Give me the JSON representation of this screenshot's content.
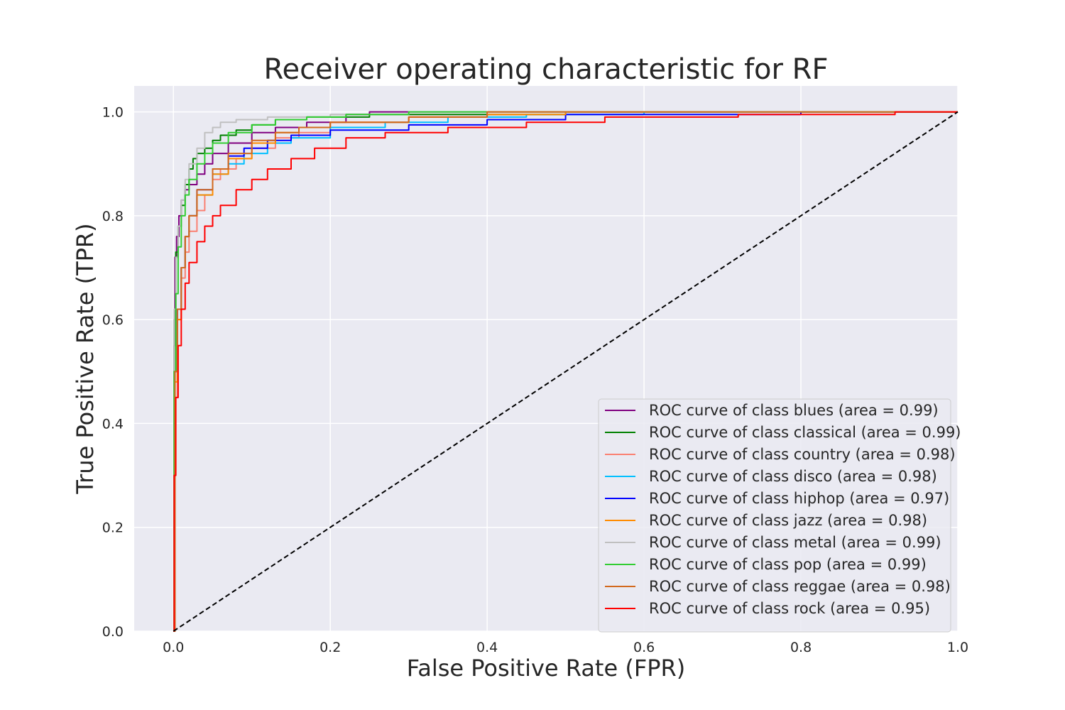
{
  "chart_data": {
    "type": "line",
    "title": "Receiver operating characteristic for RF",
    "xlabel": "False Positive Rate (FPR)",
    "ylabel": "True Positive Rate (TPR)",
    "xlim": [
      -0.05,
      1.0
    ],
    "ylim": [
      0.0,
      1.05
    ],
    "xticks": [
      "0.0",
      "0.2",
      "0.4",
      "0.6",
      "0.8",
      "1.0"
    ],
    "yticks": [
      "0.0",
      "0.2",
      "0.4",
      "0.6",
      "0.8",
      "1.0"
    ],
    "grid": true,
    "legend_position": "lower-right",
    "background_color": "#eaeaf2",
    "reference_line": {
      "x": [
        0,
        1
      ],
      "y": [
        0,
        1
      ],
      "color": "#000000",
      "style": "dashed"
    },
    "series": [
      {
        "name": "ROC curve of class blues (area = 0.99)",
        "color": "#800080",
        "x": [
          0,
          0.001,
          0.002,
          0.004,
          0.007,
          0.01,
          0.015,
          0.02,
          0.03,
          0.04,
          0.05,
          0.07,
          0.1,
          0.13,
          0.17,
          0.22,
          0.25,
          0.35,
          1.0
        ],
        "y": [
          0,
          0.55,
          0.72,
          0.76,
          0.8,
          0.83,
          0.85,
          0.86,
          0.88,
          0.9,
          0.92,
          0.94,
          0.96,
          0.97,
          0.98,
          0.995,
          1.0,
          1.0,
          1.0
        ]
      },
      {
        "name": "ROC curve of class classical (area = 0.99)",
        "color": "#008000",
        "x": [
          0,
          0.001,
          0.003,
          0.006,
          0.01,
          0.015,
          0.02,
          0.025,
          0.03,
          0.04,
          0.05,
          0.06,
          0.08,
          0.1,
          0.13,
          0.17,
          0.25,
          0.5,
          1.0
        ],
        "y": [
          0,
          0.6,
          0.73,
          0.78,
          0.82,
          0.86,
          0.89,
          0.91,
          0.92,
          0.93,
          0.945,
          0.955,
          0.965,
          0.975,
          0.985,
          0.99,
          0.995,
          1.0,
          1.0
        ]
      },
      {
        "name": "ROC curve of class country (area = 0.98)",
        "color": "#fa8072",
        "x": [
          0,
          0.002,
          0.005,
          0.01,
          0.015,
          0.02,
          0.03,
          0.04,
          0.05,
          0.06,
          0.08,
          0.1,
          0.13,
          0.16,
          0.2,
          0.3,
          0.4,
          0.5,
          1.0
        ],
        "y": [
          0,
          0.45,
          0.6,
          0.68,
          0.73,
          0.77,
          0.81,
          0.84,
          0.87,
          0.89,
          0.91,
          0.93,
          0.95,
          0.96,
          0.98,
          0.99,
          0.995,
          1.0,
          1.0
        ]
      },
      {
        "name": "ROC curve of class disco (area = 0.98)",
        "color": "#00bfff",
        "x": [
          0,
          0.002,
          0.005,
          0.01,
          0.015,
          0.02,
          0.03,
          0.05,
          0.07,
          0.09,
          0.12,
          0.15,
          0.2,
          0.27,
          0.35,
          0.45,
          0.6,
          1.0
        ],
        "y": [
          0,
          0.5,
          0.62,
          0.7,
          0.76,
          0.8,
          0.84,
          0.88,
          0.9,
          0.92,
          0.94,
          0.95,
          0.97,
          0.98,
          0.99,
          0.995,
          1.0,
          1.0
        ]
      },
      {
        "name": "ROC curve of class hiphop (area = 0.97)",
        "color": "#0000ff",
        "x": [
          0,
          0.002,
          0.005,
          0.01,
          0.015,
          0.02,
          0.03,
          0.05,
          0.07,
          0.09,
          0.12,
          0.15,
          0.2,
          0.3,
          0.4,
          0.5,
          0.7,
          0.8,
          1.0
        ],
        "y": [
          0,
          0.5,
          0.62,
          0.7,
          0.76,
          0.8,
          0.85,
          0.89,
          0.915,
          0.93,
          0.945,
          0.955,
          0.965,
          0.975,
          0.985,
          0.995,
          0.995,
          1.0,
          1.0
        ]
      },
      {
        "name": "ROC curve of class jazz (area = 0.98)",
        "color": "#ff8c00",
        "x": [
          0,
          0.002,
          0.005,
          0.01,
          0.015,
          0.02,
          0.03,
          0.05,
          0.07,
          0.1,
          0.13,
          0.16,
          0.2,
          0.3,
          0.4,
          0.5,
          1.0
        ],
        "y": [
          0,
          0.48,
          0.6,
          0.7,
          0.76,
          0.8,
          0.84,
          0.88,
          0.91,
          0.94,
          0.96,
          0.97,
          0.98,
          0.99,
          0.995,
          1.0,
          1.0
        ]
      },
      {
        "name": "ROC curve of class metal (area = 0.99)",
        "color": "#c0c0c0",
        "x": [
          0,
          0.001,
          0.003,
          0.006,
          0.01,
          0.015,
          0.02,
          0.03,
          0.04,
          0.05,
          0.06,
          0.08,
          0.12,
          0.2,
          0.3,
          1.0
        ],
        "y": [
          0,
          0.62,
          0.72,
          0.78,
          0.83,
          0.87,
          0.9,
          0.93,
          0.96,
          0.97,
          0.98,
          0.985,
          0.99,
          0.995,
          1.0,
          1.0
        ]
      },
      {
        "name": "ROC curve of class pop (area = 0.99)",
        "color": "#32cd32",
        "x": [
          0,
          0.001,
          0.003,
          0.006,
          0.01,
          0.015,
          0.02,
          0.03,
          0.04,
          0.05,
          0.07,
          0.1,
          0.13,
          0.17,
          0.22,
          0.3,
          1.0
        ],
        "y": [
          0,
          0.5,
          0.65,
          0.74,
          0.8,
          0.84,
          0.87,
          0.9,
          0.92,
          0.94,
          0.96,
          0.975,
          0.985,
          0.99,
          0.995,
          1.0,
          1.0
        ]
      },
      {
        "name": "ROC curve of class reggae (area = 0.98)",
        "color": "#d2691e",
        "x": [
          0,
          0.002,
          0.005,
          0.01,
          0.015,
          0.02,
          0.03,
          0.05,
          0.07,
          0.1,
          0.13,
          0.16,
          0.2,
          0.3,
          0.4,
          1.0
        ],
        "y": [
          0,
          0.5,
          0.62,
          0.7,
          0.76,
          0.8,
          0.85,
          0.89,
          0.92,
          0.945,
          0.96,
          0.97,
          0.98,
          0.99,
          1.0,
          1.0
        ]
      },
      {
        "name": "ROC curve of class rock (area = 0.95)",
        "color": "#ff0000",
        "x": [
          0,
          0.001,
          0.003,
          0.006,
          0.01,
          0.015,
          0.02,
          0.03,
          0.04,
          0.05,
          0.06,
          0.08,
          0.1,
          0.12,
          0.15,
          0.18,
          0.22,
          0.27,
          0.35,
          0.45,
          0.55,
          0.72,
          0.92,
          1.0
        ],
        "y": [
          0,
          0.3,
          0.45,
          0.55,
          0.62,
          0.67,
          0.71,
          0.75,
          0.78,
          0.8,
          0.82,
          0.85,
          0.87,
          0.89,
          0.91,
          0.93,
          0.95,
          0.96,
          0.97,
          0.98,
          0.99,
          0.995,
          1.0,
          1.0
        ]
      }
    ]
  }
}
